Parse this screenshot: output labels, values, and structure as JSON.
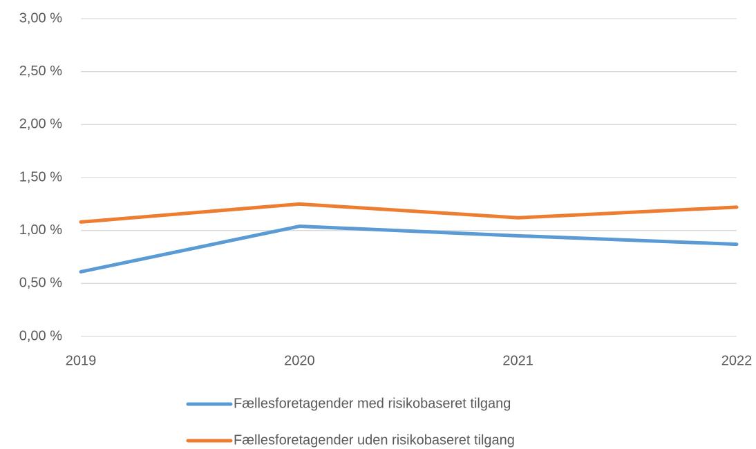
{
  "chart_data": {
    "type": "line",
    "x": [
      2019,
      2020,
      2021,
      2022
    ],
    "xlim": [
      2019,
      2022
    ],
    "xticks": [
      2019,
      2020,
      2021,
      2022
    ],
    "ylim": [
      0,
      3
    ],
    "yticks": [
      {
        "value": 0,
        "label": "0,00 %"
      },
      {
        "value": 0.5,
        "label": "0,50 %"
      },
      {
        "value": 1,
        "label": "1,00 %"
      },
      {
        "value": 1.5,
        "label": "1,50 %"
      },
      {
        "value": 2,
        "label": "2,00 %"
      },
      {
        "value": 2.5,
        "label": "2,50 %"
      },
      {
        "value": 3,
        "label": "3,00 %"
      }
    ],
    "grid": true,
    "legend": "bottom",
    "series": [
      {
        "name": "Fællesforetagender med risikobaseret tilgang",
        "color": "#5b9bd5",
        "values": [
          0.61,
          1.04,
          0.95,
          0.87
        ]
      },
      {
        "name": "Fællesforetagender uden risikobaseret tilgang",
        "color": "#ed7d31",
        "values": [
          1.08,
          1.25,
          1.12,
          1.22
        ]
      }
    ]
  }
}
